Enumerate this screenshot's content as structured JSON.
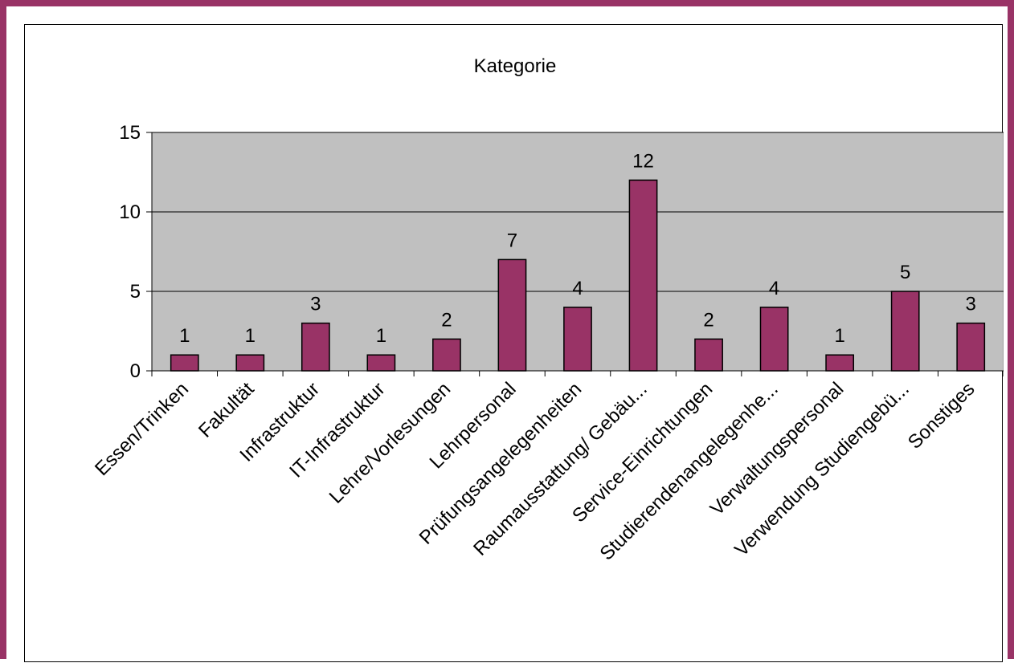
{
  "chart_data": {
    "type": "bar",
    "title": "Kategorie",
    "xlabel": "",
    "ylabel": "",
    "categories": [
      "Essen/Trinken",
      "Fakultät",
      "Infrastruktur",
      "IT-Infrastruktur",
      "Lehre/Vorlesungen",
      "Lehrpersonal",
      "Prüfungsangelegenheiten",
      "Raumausstattung/ Gebäu...",
      "Service-Einrichtungen",
      "Studierendenangelegenhe...",
      "Verwaltungspersonal",
      "Verwendung Studiengebü...",
      "Sonstiges"
    ],
    "values": [
      1,
      1,
      3,
      1,
      2,
      7,
      4,
      12,
      2,
      4,
      1,
      5,
      3
    ],
    "ylim": [
      0,
      15
    ],
    "yticks": [
      0,
      5,
      10,
      15
    ],
    "grid": true,
    "data_labels": true,
    "legend": "none",
    "colors": {
      "bar": "#993366",
      "plot_background": "#c0c0c0",
      "frame": "#993366"
    }
  }
}
